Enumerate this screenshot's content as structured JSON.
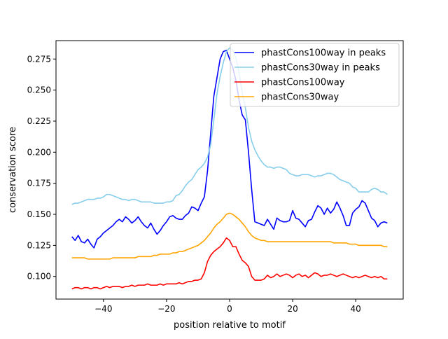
{
  "chart_data": {
    "type": "line",
    "title": "",
    "xlabel": "position relative to motif",
    "ylabel": "conservation score",
    "xlim": [
      -55.05,
      55.05
    ],
    "ylim": [
      0.0818,
      0.2898
    ],
    "xticks": [
      -40,
      -20,
      0,
      20,
      40
    ],
    "xtick_labels": [
      "−40",
      "−20",
      "0",
      "20",
      "40"
    ],
    "yticks": [
      0.1,
      0.125,
      0.15,
      0.175,
      0.2,
      0.225,
      0.25,
      0.275
    ],
    "ytick_labels": [
      "0.100",
      "0.125",
      "0.150",
      "0.175",
      "0.200",
      "0.225",
      "0.250",
      "0.275"
    ],
    "grid": false,
    "legend_position": "top-right",
    "x": [
      -50,
      -49,
      -48,
      -47,
      -46,
      -45,
      -44,
      -43,
      -42,
      -41,
      -40,
      -39,
      -38,
      -37,
      -36,
      -35,
      -34,
      -33,
      -32,
      -31,
      -30,
      -29,
      -28,
      -27,
      -26,
      -25,
      -24,
      -23,
      -22,
      -21,
      -20,
      -19,
      -18,
      -17,
      -16,
      -15,
      -14,
      -13,
      -12,
      -11,
      -10,
      -9,
      -8,
      -7,
      -6,
      -5,
      -4,
      -3,
      -2,
      -1,
      0,
      1,
      2,
      3,
      4,
      5,
      6,
      7,
      8,
      9,
      10,
      11,
      12,
      13,
      14,
      15,
      16,
      17,
      18,
      19,
      20,
      21,
      22,
      23,
      24,
      25,
      26,
      27,
      28,
      29,
      30,
      31,
      32,
      33,
      34,
      35,
      36,
      37,
      38,
      39,
      40,
      41,
      42,
      43,
      44,
      45,
      46,
      47,
      48,
      49,
      50
    ],
    "series": [
      {
        "name": "phastCons100way in peaks",
        "color": "#0000ff",
        "values": [
          0.132,
          0.129,
          0.133,
          0.128,
          0.127,
          0.13,
          0.126,
          0.123,
          0.13,
          0.132,
          0.135,
          0.137,
          0.139,
          0.141,
          0.144,
          0.146,
          0.144,
          0.148,
          0.146,
          0.143,
          0.145,
          0.148,
          0.144,
          0.141,
          0.139,
          0.143,
          0.138,
          0.134,
          0.137,
          0.141,
          0.144,
          0.148,
          0.149,
          0.147,
          0.146,
          0.146,
          0.149,
          0.151,
          0.156,
          0.155,
          0.153,
          0.159,
          0.164,
          0.185,
          0.215,
          0.245,
          0.26,
          0.275,
          0.281,
          0.282,
          0.275,
          0.268,
          0.258,
          0.242,
          0.23,
          0.226,
          0.2,
          0.17,
          0.144,
          0.143,
          0.142,
          0.141,
          0.146,
          0.142,
          0.138,
          0.147,
          0.145,
          0.144,
          0.144,
          0.145,
          0.153,
          0.147,
          0.146,
          0.143,
          0.14,
          0.145,
          0.146,
          0.152,
          0.157,
          0.155,
          0.15,
          0.155,
          0.151,
          0.154,
          0.16,
          0.155,
          0.149,
          0.141,
          0.141,
          0.151,
          0.154,
          0.156,
          0.161,
          0.159,
          0.153,
          0.147,
          0.145,
          0.14,
          0.143,
          0.144,
          0.143
        ]
      },
      {
        "name": "phastCons30way in peaks",
        "color": "#87ceeb",
        "values": [
          0.158,
          0.159,
          0.159,
          0.16,
          0.161,
          0.162,
          0.162,
          0.162,
          0.163,
          0.163,
          0.164,
          0.166,
          0.166,
          0.165,
          0.164,
          0.163,
          0.162,
          0.162,
          0.161,
          0.162,
          0.162,
          0.161,
          0.16,
          0.16,
          0.16,
          0.16,
          0.159,
          0.159,
          0.159,
          0.159,
          0.16,
          0.16,
          0.161,
          0.165,
          0.166,
          0.169,
          0.173,
          0.176,
          0.178,
          0.182,
          0.186,
          0.188,
          0.191,
          0.196,
          0.206,
          0.226,
          0.247,
          0.261,
          0.272,
          0.281,
          0.284,
          0.282,
          0.276,
          0.264,
          0.248,
          0.236,
          0.22,
          0.209,
          0.202,
          0.197,
          0.193,
          0.19,
          0.188,
          0.188,
          0.187,
          0.188,
          0.188,
          0.187,
          0.186,
          0.183,
          0.182,
          0.181,
          0.181,
          0.182,
          0.182,
          0.182,
          0.181,
          0.18,
          0.181,
          0.181,
          0.182,
          0.183,
          0.183,
          0.182,
          0.18,
          0.178,
          0.177,
          0.176,
          0.175,
          0.172,
          0.171,
          0.168,
          0.168,
          0.168,
          0.168,
          0.17,
          0.171,
          0.17,
          0.168,
          0.168,
          0.166
        ]
      },
      {
        "name": "phastCons100way",
        "color": "#ff0000",
        "values": [
          0.09,
          0.091,
          0.091,
          0.09,
          0.091,
          0.091,
          0.09,
          0.091,
          0.091,
          0.09,
          0.091,
          0.092,
          0.091,
          0.092,
          0.092,
          0.092,
          0.091,
          0.092,
          0.092,
          0.093,
          0.092,
          0.093,
          0.093,
          0.093,
          0.094,
          0.093,
          0.093,
          0.093,
          0.094,
          0.093,
          0.094,
          0.094,
          0.094,
          0.094,
          0.095,
          0.094,
          0.095,
          0.096,
          0.096,
          0.097,
          0.097,
          0.098,
          0.103,
          0.112,
          0.117,
          0.12,
          0.122,
          0.124,
          0.127,
          0.131,
          0.129,
          0.124,
          0.124,
          0.118,
          0.113,
          0.111,
          0.108,
          0.1,
          0.097,
          0.097,
          0.097,
          0.098,
          0.101,
          0.099,
          0.1,
          0.102,
          0.1,
          0.101,
          0.102,
          0.101,
          0.099,
          0.101,
          0.102,
          0.1,
          0.101,
          0.099,
          0.101,
          0.103,
          0.102,
          0.1,
          0.101,
          0.101,
          0.102,
          0.101,
          0.1,
          0.101,
          0.102,
          0.101,
          0.1,
          0.099,
          0.1,
          0.099,
          0.1,
          0.101,
          0.1,
          0.099,
          0.1,
          0.099,
          0.1,
          0.098,
          0.098
        ]
      },
      {
        "name": "phastCons30way",
        "color": "#ffa500",
        "values": [
          0.115,
          0.115,
          0.115,
          0.115,
          0.115,
          0.114,
          0.114,
          0.114,
          0.114,
          0.114,
          0.114,
          0.114,
          0.114,
          0.115,
          0.115,
          0.115,
          0.115,
          0.115,
          0.115,
          0.115,
          0.115,
          0.116,
          0.116,
          0.116,
          0.116,
          0.116,
          0.117,
          0.117,
          0.118,
          0.118,
          0.118,
          0.118,
          0.119,
          0.119,
          0.12,
          0.12,
          0.121,
          0.122,
          0.123,
          0.124,
          0.125,
          0.127,
          0.129,
          0.132,
          0.135,
          0.139,
          0.142,
          0.144,
          0.147,
          0.15,
          0.151,
          0.15,
          0.148,
          0.146,
          0.143,
          0.14,
          0.136,
          0.133,
          0.131,
          0.13,
          0.129,
          0.129,
          0.128,
          0.128,
          0.128,
          0.128,
          0.128,
          0.128,
          0.128,
          0.128,
          0.128,
          0.128,
          0.128,
          0.128,
          0.128,
          0.128,
          0.128,
          0.128,
          0.128,
          0.128,
          0.128,
          0.128,
          0.128,
          0.127,
          0.127,
          0.127,
          0.127,
          0.127,
          0.126,
          0.126,
          0.126,
          0.125,
          0.125,
          0.125,
          0.125,
          0.125,
          0.125,
          0.125,
          0.125,
          0.124,
          0.124
        ]
      }
    ]
  }
}
